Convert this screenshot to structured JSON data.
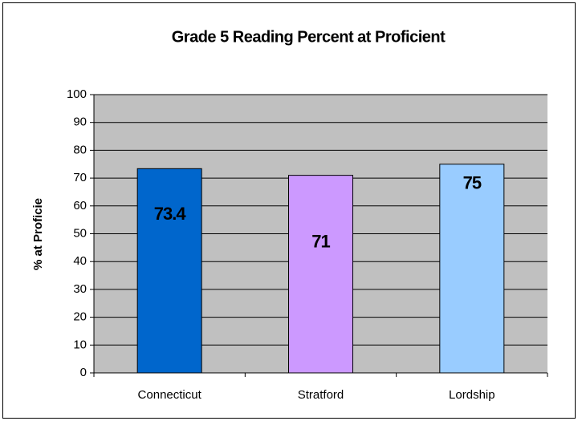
{
  "chart_data": {
    "type": "bar",
    "title": "Grade 5 Reading Percent at Proficient",
    "y_label": "% at Proficie",
    "categories": [
      "Connecticut",
      "Stratford",
      "Lordship"
    ],
    "values": [
      73.4,
      71,
      75
    ],
    "colors": [
      "#0066cc",
      "#cc99ff",
      "#99ccff"
    ],
    "ylim": [
      0,
      100
    ],
    "yticks": [
      0,
      10,
      20,
      30,
      40,
      50,
      60,
      70,
      80,
      90,
      100
    ],
    "grid": true,
    "plot_background": "#c0c0c0"
  }
}
